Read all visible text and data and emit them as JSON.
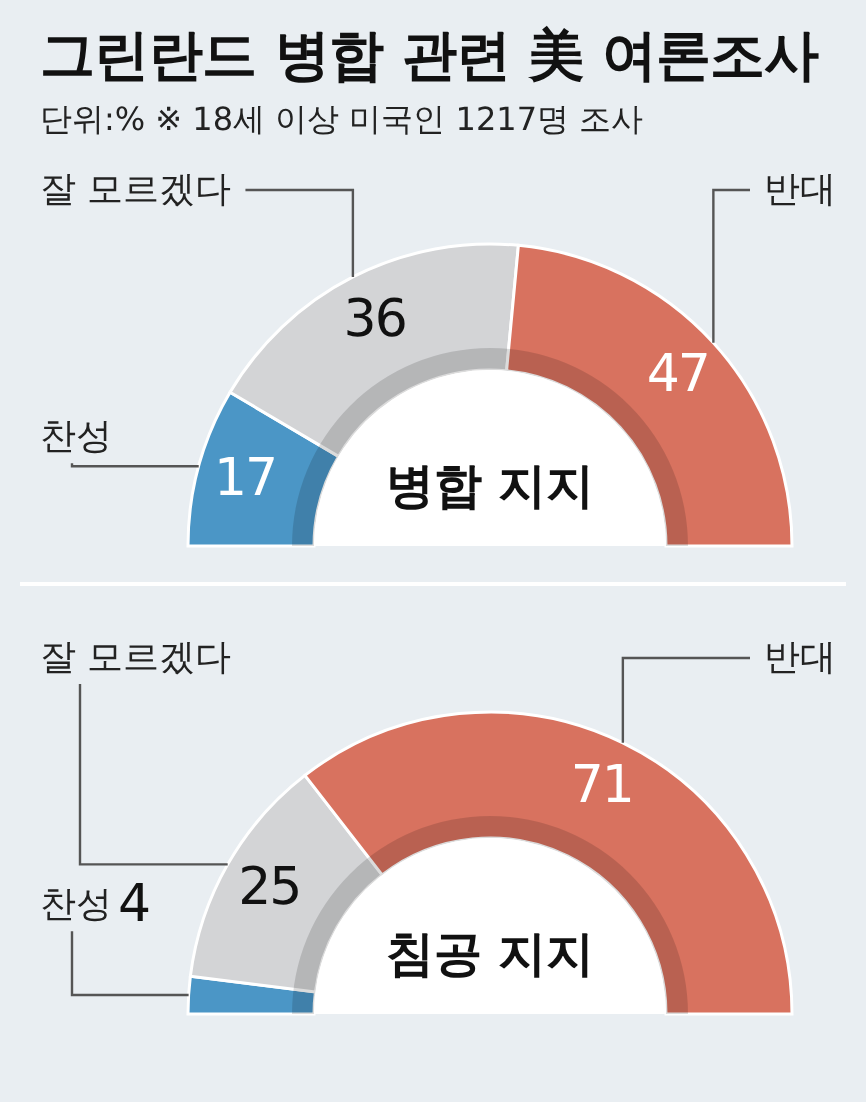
{
  "chart_data": [
    {
      "type": "other",
      "title": "그린란드 병합 관련 美 여론조사",
      "subtitle": "단위:% ※ 18세 이상 미국인 1217명 조사"
    },
    {
      "type": "donut",
      "title": "병합 지지",
      "categories": [
        "찬성",
        "잘 모르겠다",
        "반대"
      ],
      "values": [
        17,
        36,
        47
      ],
      "colors": [
        "#4b96c6",
        "#d3d4d6",
        "#d8725f"
      ],
      "data_labels": true
    },
    {
      "type": "donut",
      "title": "침공 지지",
      "categories": [
        "찬성",
        "잘 모르겠다",
        "반대"
      ],
      "values": [
        4,
        25,
        71
      ],
      "colors": [
        "#4b96c6",
        "#d3d4d6",
        "#d8725f"
      ],
      "data_labels": true
    }
  ]
}
